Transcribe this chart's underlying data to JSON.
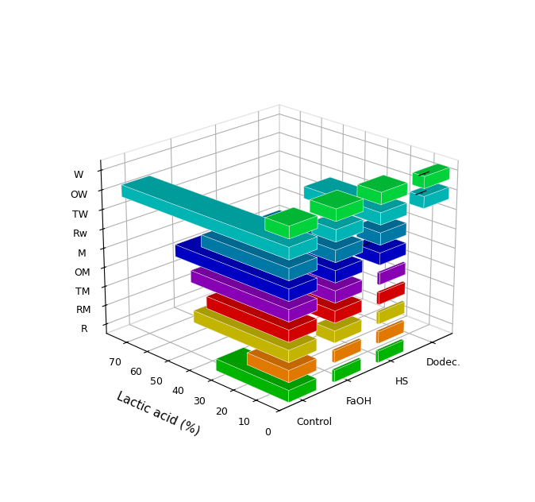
{
  "ylabel": "Lactic acid (%)",
  "ylim": [
    0,
    80
  ],
  "yticks": [
    0,
    10,
    20,
    30,
    40,
    50,
    60,
    70
  ],
  "row_labels": [
    "R",
    "RM",
    "TM",
    "OM",
    "M",
    "Rw",
    "TW",
    "OW",
    "W"
  ],
  "col_labels": [
    "Control",
    "FaOH",
    "HS",
    "Dodec."
  ],
  "bar_colors": [
    "#00cc00",
    "#ff8800",
    "#ddcc00",
    "#ee0000",
    "#9900cc",
    "#0000dd",
    "#0088bb",
    "#00cccc",
    "#00ee44"
  ],
  "values": [
    [
      32,
      18,
      42,
      36,
      43,
      50,
      38,
      75,
      10
    ],
    [
      1,
      1,
      8,
      29,
      25,
      24,
      36,
      10,
      11
    ],
    [
      1,
      1,
      1,
      1,
      1,
      11,
      10,
      33,
      10
    ],
    [
      0,
      0,
      0,
      0,
      0,
      0,
      0,
      6,
      5
    ]
  ],
  "errors": [
    [
      1,
      1,
      1,
      1,
      1,
      1,
      1,
      1,
      1
    ],
    [
      0,
      0,
      0.5,
      1,
      1,
      1,
      1,
      0.5,
      0.5
    ],
    [
      0,
      0,
      0,
      0,
      0,
      0.5,
      0.5,
      1,
      0.5
    ],
    [
      0,
      0,
      0,
      0,
      0,
      0,
      0,
      0.5,
      0.5
    ]
  ],
  "background_color": "#ffffff",
  "grid_color": "#cccccc",
  "bar_width": 0.6,
  "bar_depth": 0.6,
  "elev": 22,
  "azim": 225,
  "fig_width": 6.74,
  "fig_height": 6.32
}
